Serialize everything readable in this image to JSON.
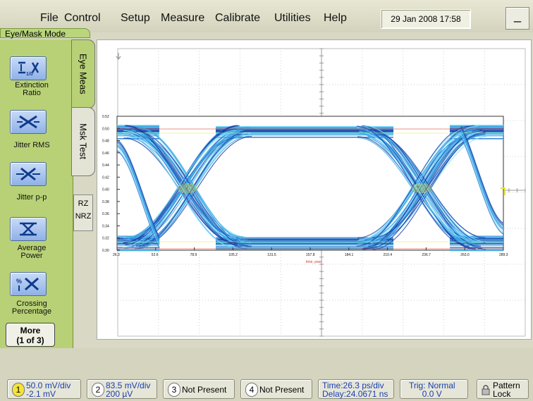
{
  "menu": {
    "items": [
      "File",
      "Control",
      "Setup",
      "Measure",
      "Calibrate",
      "Utilities",
      "Help"
    ],
    "datetime": "29 Jan 2008   17:58",
    "minimize": "_"
  },
  "mode_label": "Eye/Mask Mode",
  "tabs": {
    "eye": "Eye Meas",
    "mask": "Msk Test",
    "rz": "RZ",
    "nrz": "NRZ"
  },
  "measurements": [
    {
      "label_line1": "Extinction",
      "label_line2": "Ratio",
      "icon": "extinction-ratio-icon"
    },
    {
      "label_line1": "Jitter RMS",
      "label_line2": "",
      "icon": "jitter-rms-icon"
    },
    {
      "label_line1": "Jitter p-p",
      "label_line2": "",
      "icon": "jitter-pp-icon"
    },
    {
      "label_line1": "Average",
      "label_line2": "Power",
      "icon": "average-power-icon"
    },
    {
      "label_line1": "Crossing",
      "label_line2": "Percentage",
      "icon": "crossing-percentage-icon"
    }
  ],
  "more_button": {
    "line1": "More",
    "line2": "(1 of 3)"
  },
  "plot": {
    "y_ticks": [
      "0.52",
      "0.50",
      "0.48",
      "0.46",
      "0.44",
      "0.42",
      "0.40",
      "0.38",
      "0.36",
      "0.34",
      "0.32",
      "0.30"
    ],
    "x_ticks": [
      "26.3",
      "52.6",
      "78.9",
      "105.2",
      "131.5",
      "157.8",
      "184.1",
      "210.4",
      "236.7",
      "263.0",
      "289.3"
    ],
    "x_label": "time, psec",
    "colors": {
      "eye_primary": "#3aa8e6",
      "eye_dark": "#1c3ea8",
      "eye_highlight": "#7fe0ff",
      "accent_red": "#d23a2a",
      "accent_yellow": "#e8e23a"
    }
  },
  "bottom": {
    "ch1": {
      "num": "1",
      "line1": "50.0 mV/div",
      "line2": "-2.1 mV"
    },
    "ch2": {
      "num": "2",
      "line1": "83.5 mV/div",
      "line2": "200 µV"
    },
    "ch3": {
      "num": "3",
      "text": "Not Present"
    },
    "ch4": {
      "num": "4",
      "text": "Not Present"
    },
    "time": {
      "line1": "Time:26.3 ps/div",
      "line2": "Delay:24.0671 ns"
    },
    "trig": {
      "line1": "Trig: Normal",
      "line2": "0.0 V"
    },
    "pattern": {
      "line1": "Pattern",
      "line2": "Lock"
    }
  }
}
